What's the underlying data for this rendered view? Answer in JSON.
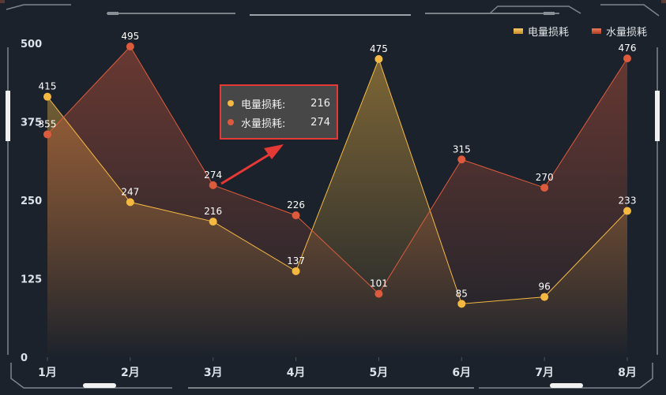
{
  "colors": {
    "background": "#1c222b",
    "electric": "#f5b942",
    "water": "#dd5b3c",
    "tooltip_border": "#e53935",
    "arrow": "#e53935",
    "frame": "#7d858e"
  },
  "chart_data": {
    "type": "line",
    "categories": [
      "1月",
      "2月",
      "3月",
      "4月",
      "5月",
      "6月",
      "7月",
      "8月"
    ],
    "series": [
      {
        "name": "电量损耗",
        "values": [
          415,
          247,
          216,
          137,
          475,
          85,
          96,
          233
        ],
        "color": "#f5b942"
      },
      {
        "name": "水量损耗",
        "values": [
          355,
          495,
          274,
          226,
          101,
          315,
          270,
          476
        ],
        "color": "#dd5b3c"
      }
    ],
    "ylim": [
      0,
      500
    ],
    "yticks": [
      0,
      125,
      250,
      375,
      500
    ],
    "area_fill": true,
    "data_labels": true,
    "legend": {
      "position": "top-right"
    },
    "grid": false
  },
  "tooltip": {
    "category": "3月",
    "rows": [
      {
        "name": "电量损耗:",
        "value": "216"
      },
      {
        "name": "水量损耗:",
        "value": "274"
      }
    ]
  }
}
